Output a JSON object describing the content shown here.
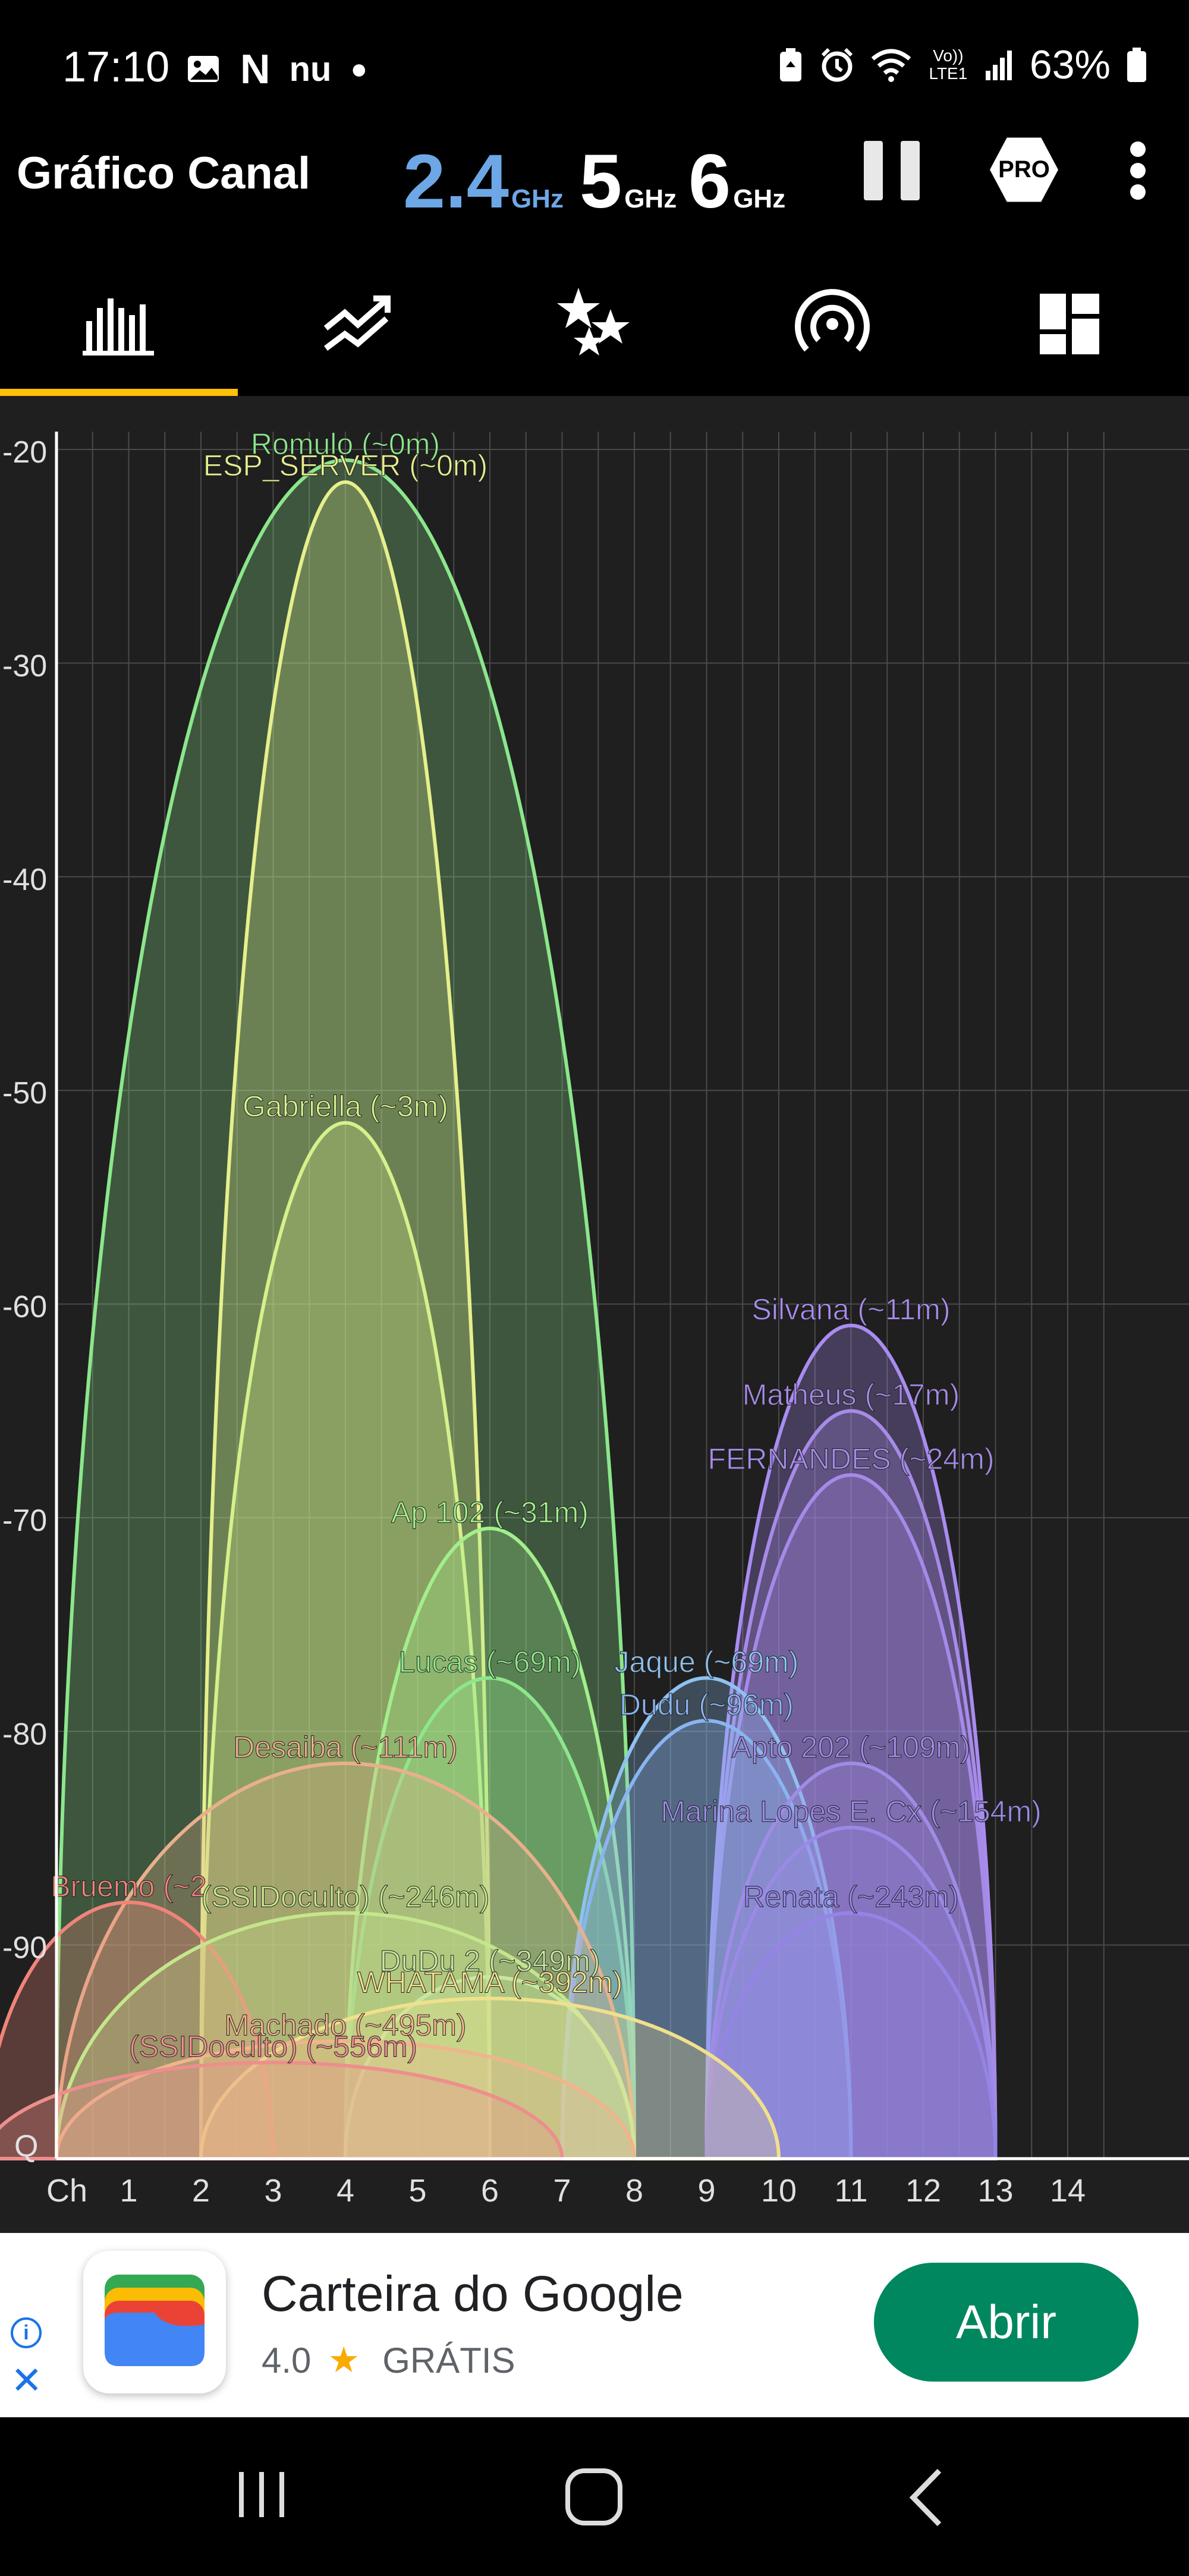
{
  "status_bar": {
    "time": "17:10",
    "left_icons": [
      "gallery-icon",
      "netflix-icon",
      "nubank-icon",
      "dot-icon"
    ],
    "right_icons": [
      "battery-saver-icon",
      "alarm-icon",
      "wifi-icon",
      "volte-icon",
      "signal-icon"
    ],
    "volte_label": "Vo)) LTE1",
    "battery": "63%"
  },
  "app_bar": {
    "title": "Gráfico Canal",
    "bands": [
      {
        "value": "2.4",
        "unit": "GHz",
        "active": true
      },
      {
        "value": "5",
        "unit": "GHz",
        "active": false
      },
      {
        "value": "6",
        "unit": "GHz",
        "active": false
      }
    ],
    "pro_label": "PRO"
  },
  "tabs": [
    {
      "icon": "channel-graph-icon",
      "active": true
    },
    {
      "icon": "time-graph-icon",
      "active": false
    },
    {
      "icon": "channel-rating-icon",
      "active": false
    },
    {
      "icon": "access-points-icon",
      "active": false
    },
    {
      "icon": "vendors-icon",
      "active": false
    }
  ],
  "chart_data": {
    "type": "area",
    "y_ticks": [
      "-20",
      "-30",
      "-40",
      "-50",
      "-60",
      "-70",
      "-80",
      "-90"
    ],
    "y_bottom_label": "Q",
    "x_axis_label": "Ch",
    "x_ticks": [
      "1",
      "2",
      "3",
      "4",
      "5",
      "6",
      "7",
      "8",
      "9",
      "10",
      "11",
      "12",
      "13",
      "14"
    ],
    "ylim": [
      -100,
      -20
    ],
    "xlim": [
      -1,
      15
    ],
    "grid": true,
    "series": [
      {
        "name": "Romulo (~0m)",
        "channel": 4,
        "signal": -20.5,
        "halfwidth": 4,
        "color": "#8ce68c"
      },
      {
        "name": "ESP_SERVER (~0m)",
        "channel": 4,
        "signal": -21.5,
        "halfwidth": 2,
        "color": "#e6ef8c"
      },
      {
        "name": "Gabriella (~3m)",
        "channel": 4,
        "signal": -51.5,
        "halfwidth": 2,
        "color": "#d6f08c"
      },
      {
        "name": "Ap 102 (~31m)",
        "channel": 6,
        "signal": -70.5,
        "halfwidth": 2,
        "color": "#a2ee8c"
      },
      {
        "name": "Lucas (~69m)",
        "channel": 6,
        "signal": -77.5,
        "halfwidth": 2,
        "color": "#8ee68c"
      },
      {
        "name": "Jaque (~69m)",
        "channel": 9,
        "signal": -77.5,
        "halfwidth": 2,
        "color": "#8ec2f0"
      },
      {
        "name": "Dudu (~96m)",
        "channel": 9,
        "signal": -79.5,
        "halfwidth": 2,
        "color": "#8ab4f0"
      },
      {
        "name": "Apto 202 (~109m)",
        "channel": 11,
        "signal": -81.5,
        "halfwidth": 2,
        "color": "#a08ce6"
      },
      {
        "name": "Marina Lopes E. Cx (~154m)",
        "channel": 11,
        "signal": -84.5,
        "halfwidth": 2,
        "color": "#9a8ae6"
      },
      {
        "name": "Renata (~243m)",
        "channel": 11,
        "signal": -88.5,
        "halfwidth": 2,
        "color": "#9584e6"
      },
      {
        "name": "Silvana (~11m)",
        "channel": 11,
        "signal": -61,
        "halfwidth": 2,
        "color": "#a98cf0"
      },
      {
        "name": "Matheus (~17m)",
        "channel": 11,
        "signal": -65,
        "halfwidth": 2,
        "color": "#a88ae8"
      },
      {
        "name": "FERNANDES (~24m)",
        "channel": 11,
        "signal": -68,
        "halfwidth": 2,
        "color": "#a58ae8"
      },
      {
        "name": "Desaiba (~111m)",
        "channel": 4,
        "signal": -81.5,
        "halfwidth": 4,
        "color": "#e8b08c"
      },
      {
        "name": "Bruemo (~2",
        "channel": 1,
        "signal": -88,
        "halfwidth": 2,
        "color": "#f0847a"
      },
      {
        "name": "(SSIDoculto) (~246m)",
        "channel": 4,
        "signal": -88.5,
        "halfwidth": 4,
        "color": "#c4e68c"
      },
      {
        "name": "DuDu 2 (~349m)",
        "channel": 6,
        "signal": -91.5,
        "halfwidth": 2,
        "color": "#c8e8a0"
      },
      {
        "name": "WHATAMA (~392m)",
        "channel": 6,
        "signal": -92.5,
        "halfwidth": 4,
        "color": "#f0e08c"
      },
      {
        "name": "Machado (~495m)",
        "channel": 4,
        "signal": -94.5,
        "halfwidth": 4,
        "color": "#f0b48c"
      },
      {
        "name": "(SSIDoculto) (~556m)",
        "channel": 3,
        "signal": -95.5,
        "halfwidth": 4,
        "color": "#ec8f8c"
      }
    ]
  },
  "ad": {
    "title": "Carteira do Google",
    "rating": "4.0",
    "price": "GRÁTIS",
    "cta": "Abrir"
  },
  "nav_bar": {
    "buttons": [
      "recent-apps-icon",
      "home-icon",
      "back-icon"
    ]
  }
}
